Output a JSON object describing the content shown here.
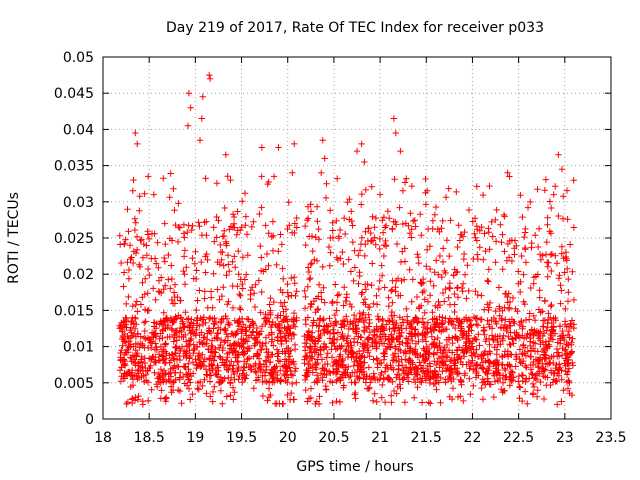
{
  "chart_data": {
    "type": "scatter",
    "title": "Day 219 of 2017, Rate Of TEC Index for receiver p033",
    "xlabel": "GPS time / hours",
    "ylabel": "ROTI / TECUs",
    "xlim": [
      18,
      23.5
    ],
    "ylim": [
      0,
      0.05
    ],
    "xticks": [
      "18",
      "18.5",
      "19",
      "19.5",
      "20",
      "20.5",
      "21",
      "21.5",
      "22",
      "22.5",
      "23",
      "23.5"
    ],
    "yticks": [
      "0",
      "0.005",
      "0.01",
      "0.015",
      "0.02",
      "0.025",
      "0.03",
      "0.035",
      "0.04",
      "0.045",
      "0.05"
    ],
    "grid": true,
    "marker": "+",
    "color": "#ff0000",
    "time_coverage": [
      [
        18.18,
        20.1
      ],
      [
        20.18,
        23.1
      ]
    ],
    "baseline_band": [
      0.002,
      0.02
    ],
    "notable_points": [
      {
        "x": 18.35,
        "y": 0.0395
      },
      {
        "x": 18.37,
        "y": 0.038
      },
      {
        "x": 18.33,
        "y": 0.033
      },
      {
        "x": 18.55,
        "y": 0.031
      },
      {
        "x": 18.93,
        "y": 0.045
      },
      {
        "x": 18.95,
        "y": 0.043
      },
      {
        "x": 18.92,
        "y": 0.0405
      },
      {
        "x": 19.08,
        "y": 0.0445
      },
      {
        "x": 19.07,
        "y": 0.0415
      },
      {
        "x": 19.15,
        "y": 0.0475
      },
      {
        "x": 19.16,
        "y": 0.047
      },
      {
        "x": 19.05,
        "y": 0.0385
      },
      {
        "x": 19.33,
        "y": 0.0365
      },
      {
        "x": 19.38,
        "y": 0.033
      },
      {
        "x": 19.72,
        "y": 0.0375
      },
      {
        "x": 19.9,
        "y": 0.0375
      },
      {
        "x": 20.07,
        "y": 0.038
      },
      {
        "x": 20.05,
        "y": 0.034
      },
      {
        "x": 20.38,
        "y": 0.0385
      },
      {
        "x": 20.4,
        "y": 0.036
      },
      {
        "x": 20.42,
        "y": 0.0325
      },
      {
        "x": 20.75,
        "y": 0.037
      },
      {
        "x": 20.8,
        "y": 0.038
      },
      {
        "x": 20.83,
        "y": 0.0355
      },
      {
        "x": 21.0,
        "y": 0.031
      },
      {
        "x": 21.15,
        "y": 0.0415
      },
      {
        "x": 21.17,
        "y": 0.0395
      },
      {
        "x": 21.22,
        "y": 0.037
      },
      {
        "x": 22.08,
        "y": 0.026
      },
      {
        "x": 22.1,
        "y": 0.0265
      },
      {
        "x": 22.38,
        "y": 0.034
      },
      {
        "x": 22.4,
        "y": 0.0335
      },
      {
        "x": 22.93,
        "y": 0.0365
      },
      {
        "x": 22.97,
        "y": 0.0345
      },
      {
        "x": 22.88,
        "y": 0.031
      }
    ]
  }
}
